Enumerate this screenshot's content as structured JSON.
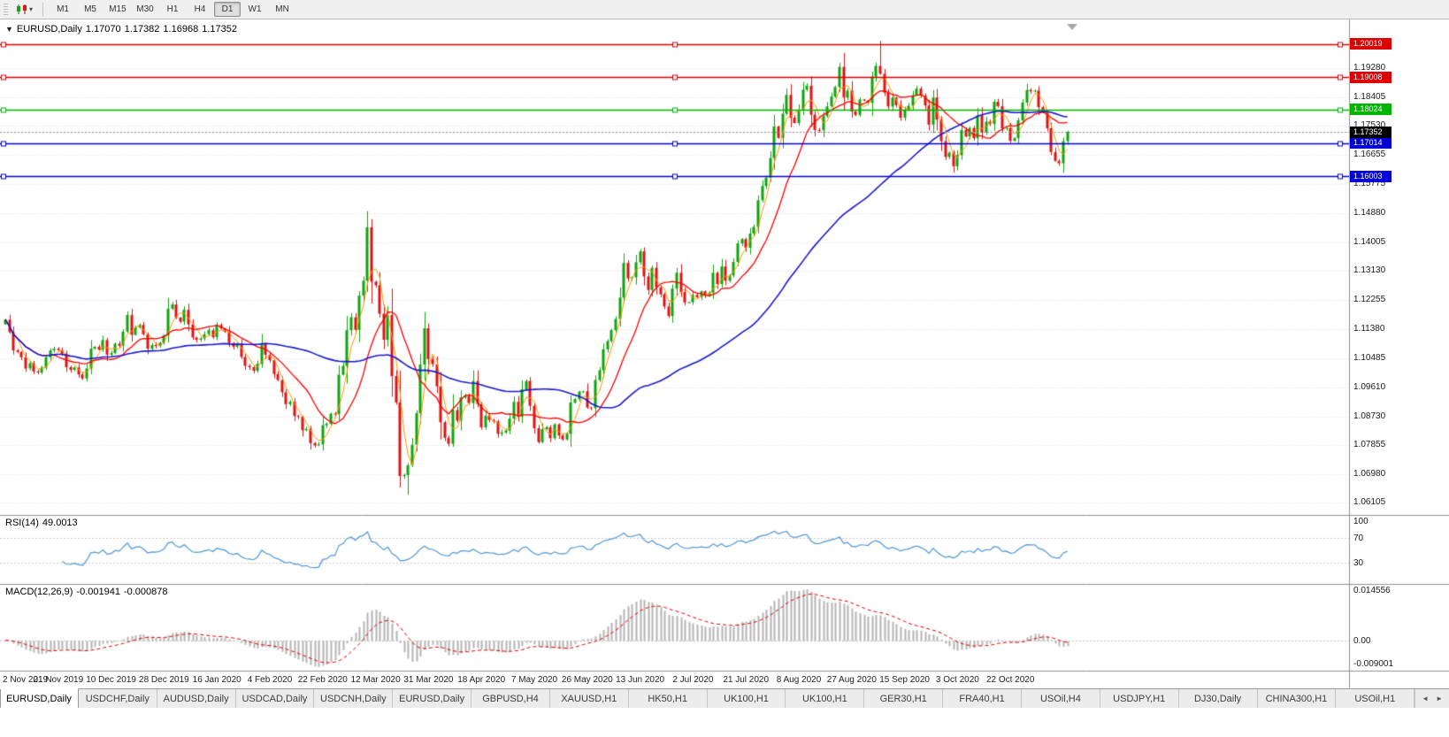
{
  "icons": {
    "caret_down": "▾",
    "one_click_arrow": "▼",
    "tabs_scroll_left": "◄",
    "tabs_scroll_right": "►"
  },
  "toolbar": {
    "timeframes": [
      "M1",
      "M5",
      "M15",
      "M30",
      "H1",
      "H4",
      "D1",
      "W1",
      "MN"
    ],
    "active": "D1"
  },
  "chart_data": {
    "type": "candlestick",
    "symbol": "EURUSD,Daily",
    "ohlc_line": {
      "open": "1.17070",
      "high": "1.17382",
      "low": "1.16968",
      "close": "1.17352"
    },
    "price_axis_ticks": [
      "1.19280",
      "1.18405",
      "1.17530",
      "1.16655",
      "1.15775",
      "1.14880",
      "1.14005",
      "1.13130",
      "1.12255",
      "1.11380",
      "1.10485",
      "1.09610",
      "1.08730",
      "1.07855",
      "1.06980",
      "1.06105"
    ],
    "hlines": [
      {
        "price": 1.20019,
        "label": "1.20019",
        "color": "#dd0000"
      },
      {
        "price": 1.19008,
        "label": "1.19008",
        "color": "#dd0000"
      },
      {
        "price": 1.18024,
        "label": "1.18024",
        "color": "#00b400"
      },
      {
        "price": 1.17014,
        "label": "1.17014",
        "color": "#0000d6"
      },
      {
        "price": 1.16003,
        "label": "1.16003",
        "color": "#0000d6"
      }
    ],
    "current_price": {
      "value": 1.17352,
      "label": "1.17352",
      "color": "#000000"
    },
    "candles": {
      "first_open": 1.1152,
      "closes": [
        1.1166,
        1.1128,
        1.1073,
        1.1068,
        1.1052,
        1.1018,
        1.1034,
        1.1009,
        1.1006,
        1.1021,
        1.1052,
        1.1073,
        1.1078,
        1.1074,
        1.1063,
        1.1022,
        1.1014,
        1.1021,
        1.1,
        1.0988,
        1.1018,
        1.1078,
        1.1084,
        1.1075,
        1.1104,
        1.106,
        1.1065,
        1.1093,
        1.1087,
        1.113,
        1.118,
        1.112,
        1.1143,
        1.115,
        1.1122,
        1.1078,
        1.1089,
        1.1086,
        1.1096,
        1.1118,
        1.1199,
        1.1212,
        1.1172,
        1.116,
        1.1196,
        1.1152,
        1.1112,
        1.1105,
        1.1109,
        1.1122,
        1.1134,
        1.1113,
        1.115,
        1.1139,
        1.113,
        1.1095,
        1.1084,
        1.1093,
        1.1053,
        1.1026,
        1.1022,
        1.1011,
        1.1032,
        1.1093,
        1.106,
        1.1043,
        1.1001,
        1.0983,
        1.0946,
        1.091,
        1.0917,
        1.0874,
        1.0872,
        1.0831,
        1.0835,
        1.0792,
        1.0785,
        1.0788,
        1.0846,
        1.0851,
        1.0881,
        1.088,
        1.0999,
        1.1026,
        1.1134,
        1.1173,
        1.1135,
        1.1239,
        1.1284,
        1.1446,
        1.1281,
        1.127,
        1.1184,
        1.1105,
        1.118,
        1.0995,
        1.0915,
        1.0692,
        1.0695,
        1.0725,
        1.0787,
        1.0883,
        1.103,
        1.114,
        1.1047,
        1.1031,
        1.0964,
        1.0855,
        1.0808,
        1.079,
        1.0892,
        1.086,
        1.093,
        1.0935,
        1.0913,
        1.098,
        1.091,
        1.084,
        1.0875,
        1.0862,
        1.0858,
        1.082,
        1.0824,
        1.083,
        1.0866,
        1.0917,
        1.0872,
        1.0955,
        1.098,
        1.0905,
        1.0837,
        1.0795,
        1.0834,
        1.084,
        1.0807,
        1.0849,
        1.0815,
        1.0803,
        1.082,
        1.0915,
        1.0925,
        1.0948,
        1.0949,
        1.09,
        1.0898,
        1.0983,
        1.1013,
        1.1076,
        1.1101,
        1.1134,
        1.1168,
        1.1233,
        1.1338,
        1.1291,
        1.1294,
        1.134,
        1.1373,
        1.1297,
        1.1256,
        1.1323,
        1.1264,
        1.1243,
        1.1206,
        1.1177,
        1.126,
        1.1308,
        1.125,
        1.1218,
        1.1219,
        1.1241,
        1.1234,
        1.1252,
        1.1239,
        1.1248,
        1.1308,
        1.1274,
        1.1327,
        1.1284,
        1.13,
        1.1341,
        1.1397,
        1.141,
        1.1384,
        1.1427,
        1.1447,
        1.1528,
        1.1571,
        1.1596,
        1.1656,
        1.1751,
        1.1717,
        1.179,
        1.1847,
        1.1778,
        1.1762,
        1.1802,
        1.1863,
        1.1875,
        1.1787,
        1.1741,
        1.174,
        1.1783,
        1.1812,
        1.1842,
        1.1871,
        1.1932,
        1.1839,
        1.186,
        1.1797,
        1.1786,
        1.1833,
        1.183,
        1.1823,
        1.1903,
        1.1935,
        1.1911,
        1.1854,
        1.1812,
        1.1839,
        1.1816,
        1.1778,
        1.1802,
        1.1814,
        1.1846,
        1.1866,
        1.1845,
        1.1815,
        1.1757,
        1.1839,
        1.1772,
        1.1707,
        1.1659,
        1.1672,
        1.1631,
        1.1665,
        1.1741,
        1.1721,
        1.1747,
        1.1716,
        1.1785,
        1.1734,
        1.1766,
        1.1759,
        1.1826,
        1.1813,
        1.1745,
        1.1747,
        1.1708,
        1.1716,
        1.177,
        1.1824,
        1.1862,
        1.1858,
        1.186,
        1.181,
        1.1794,
        1.1746,
        1.1674,
        1.1647,
        1.164,
        1.1707,
        1.17352
      ],
      "overrides": {
        "89": {
          "h": 1.1495
        },
        "97": {
          "l": 1.0658
        },
        "99": {
          "l": 1.0636
        },
        "215": {
          "h": 1.2011
        },
        "251": {
          "h": 1.1881
        },
        "261": {
          "h": 1.17382,
          "l": 1.16968
        }
      }
    },
    "moving_averages": [
      {
        "period": 4,
        "color": "#ff9900",
        "width": 1
      },
      {
        "period": 13,
        "color": "#ff0000",
        "width": 1.3
      },
      {
        "period": 55,
        "color": "#1a1ad0",
        "width": 1.6
      }
    ],
    "date_labels": [
      "2 Nov 2019",
      "21 Nov 2019",
      "10 Dec 2019",
      "28 Dec 2019",
      "16 Jan 2020",
      "4 Feb 2020",
      "22 Feb 2020",
      "12 Mar 2020",
      "31 Mar 2020",
      "18 Apr 2020",
      "7 May 2020",
      "26 May 2020",
      "13 Jun 2020",
      "2 Jul 2020",
      "21 Jul 2020",
      "8 Aug 2020",
      "27 Aug 2020",
      "15 Sep 2020",
      "3 Oct 2020",
      "22 Oct 2020"
    ],
    "rsi": {
      "label": "RSI(14)",
      "value": "49.0013",
      "levels": [
        30,
        70
      ],
      "scale_labels": [
        "100",
        "70",
        "30"
      ],
      "color": "#4f97d8"
    },
    "macd": {
      "label": "MACD(12,26,9)",
      "main_value": "-0.001941",
      "signal_value": "-0.000878",
      "scale_max": "0.014556",
      "scale_zero": "0.00",
      "scale_min": "-0.009001",
      "histogram_color": "#b4b4b4",
      "signal_color": "#e00000"
    }
  },
  "tabs": {
    "items": [
      "EURUSD,Daily",
      "USDCHF,Daily",
      "AUDUSD,Daily",
      "USDCAD,Daily",
      "USDCNH,Daily",
      "EURUSD,Daily",
      "GBPUSD,H4",
      "XAUUSD,H1",
      "HK50,H1",
      "UK100,H1",
      "UK100,H1",
      "GER30,H1",
      "FRA40,H1",
      "USOil,H4",
      "USDJPY,H1",
      "DJ30,Daily",
      "CHINA300,H1",
      "USOil,H1"
    ],
    "active_index": 0
  }
}
